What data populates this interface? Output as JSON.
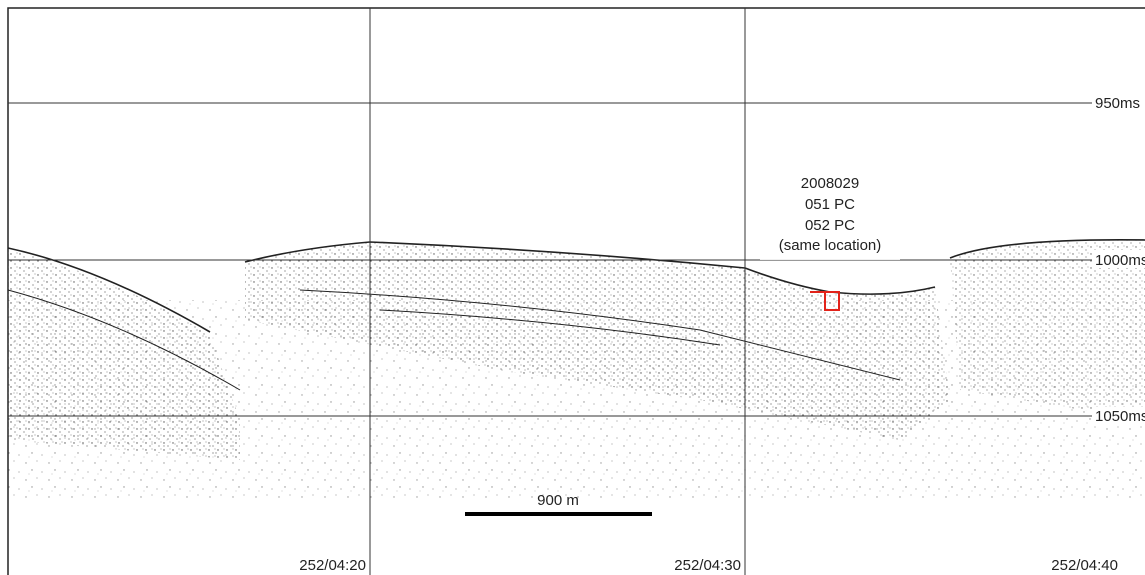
{
  "time_labels": [
    "950ms",
    "1000ms",
    "1050ms"
  ],
  "shot_labels": [
    "252/04:20",
    "252/04:30",
    "252/04:40"
  ],
  "scale_bar": "900 m",
  "annotation": [
    "2008029",
    "051 PC",
    "052 PC",
    "(same location)"
  ]
}
